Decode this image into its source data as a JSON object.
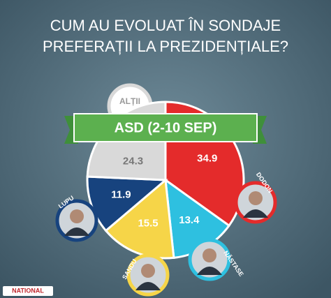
{
  "chart_data": {
    "type": "pie",
    "title": [
      "CUM AU EVOLUAT ÎN SONDAJE",
      "PREFERAȚII LA PREZIDENȚIALE?"
    ],
    "subtitle": "ASD (2-10 SEP)",
    "categories": [
      "DODON",
      "NĂSTASE",
      "SANDU",
      "LUPU",
      "ALȚII"
    ],
    "values": [
      34.9,
      13.4,
      15.5,
      11.9,
      24.3
    ],
    "colors": [
      "#e42b2b",
      "#2ec0e0",
      "#f6d548",
      "#17437e",
      "#d9d9d9"
    ],
    "source": "NATIONAL"
  }
}
